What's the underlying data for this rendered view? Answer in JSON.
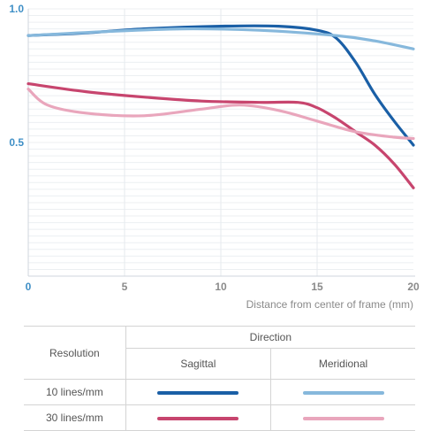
{
  "chart_data": {
    "type": "line",
    "xlabel": "Distance from center of frame (mm)",
    "ylabel": "",
    "xlim": [
      0,
      20
    ],
    "ylim": [
      0,
      1.0
    ],
    "x_ticks": [
      "0",
      "5",
      "10",
      "15",
      "20"
    ],
    "y_ticks": [
      "0.5",
      "1.0"
    ],
    "grid": true,
    "series": [
      {
        "key": "s10",
        "color": "#1a5fa6",
        "points": [
          [
            0,
            0.9
          ],
          [
            3,
            0.91
          ],
          [
            6,
            0.925
          ],
          [
            10,
            0.935
          ],
          [
            13,
            0.935
          ],
          [
            15,
            0.92
          ],
          [
            16,
            0.89
          ],
          [
            17,
            0.8
          ],
          [
            18,
            0.68
          ],
          [
            19,
            0.58
          ],
          [
            20,
            0.49
          ]
        ]
      },
      {
        "key": "m10",
        "color": "#86b8dc",
        "points": [
          [
            0,
            0.9
          ],
          [
            4,
            0.915
          ],
          [
            8,
            0.925
          ],
          [
            12,
            0.92
          ],
          [
            16,
            0.9
          ],
          [
            18,
            0.88
          ],
          [
            20,
            0.85
          ]
        ]
      },
      {
        "key": "s30",
        "color": "#c7456e",
        "points": [
          [
            0,
            0.72
          ],
          [
            3,
            0.69
          ],
          [
            6,
            0.67
          ],
          [
            9,
            0.655
          ],
          [
            12,
            0.65
          ],
          [
            14,
            0.65
          ],
          [
            15,
            0.63
          ],
          [
            16,
            0.59
          ],
          [
            17,
            0.54
          ],
          [
            18,
            0.49
          ],
          [
            19,
            0.42
          ],
          [
            20,
            0.33
          ]
        ]
      },
      {
        "key": "m30",
        "color": "#e9a6bc",
        "points": [
          [
            0,
            0.7
          ],
          [
            1,
            0.64
          ],
          [
            3,
            0.61
          ],
          [
            6,
            0.6
          ],
          [
            9,
            0.625
          ],
          [
            11,
            0.64
          ],
          [
            13,
            0.62
          ],
          [
            15,
            0.58
          ],
          [
            17,
            0.54
          ],
          [
            19,
            0.52
          ],
          [
            20,
            0.515
          ]
        ]
      }
    ]
  },
  "legend": {
    "resolution_header": "Resolution",
    "direction_header": "Direction",
    "sagittal_header": "Sagittal",
    "meridional_header": "Meridional",
    "rows": [
      {
        "label": "10 lines/mm",
        "sagittal_color": "#1a5fa6",
        "meridional_color": "#86b8dc"
      },
      {
        "label": "30 lines/mm",
        "sagittal_color": "#c7456e",
        "meridional_color": "#e9a6bc"
      }
    ]
  }
}
